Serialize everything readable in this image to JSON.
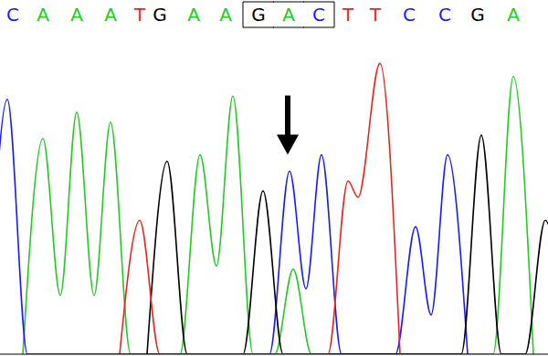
{
  "chart_data": {
    "type": "line",
    "tick_labels": "x",
    "grid": false,
    "xlim": [
      0,
      600
    ],
    "ylim": [
      0,
      100
    ],
    "xticks": [
      {
        "value": 14,
        "label": "C"
      },
      {
        "value": 47,
        "label": "A"
      },
      {
        "value": 84,
        "label": "A"
      },
      {
        "value": 121,
        "label": "A"
      },
      {
        "value": 153,
        "label": "T"
      },
      {
        "value": 175,
        "label": "G"
      },
      {
        "value": 212,
        "label": "A"
      },
      {
        "value": 247,
        "label": "A"
      },
      {
        "value": 283,
        "label": "G"
      },
      {
        "value": 316,
        "label": "A"
      },
      {
        "value": 349,
        "label": "C"
      },
      {
        "value": 381,
        "label": "T"
      },
      {
        "value": 411,
        "label": "T"
      },
      {
        "value": 448,
        "label": "C"
      },
      {
        "value": 487,
        "label": "C"
      },
      {
        "value": 523,
        "label": "G"
      },
      {
        "value": 562,
        "label": "A"
      }
    ],
    "highlight_ticks": [
      8,
      10
    ],
    "arrow": {
      "x": 315,
      "y": 61
    },
    "series": [
      {
        "name": "A",
        "color": "#22cc22",
        "x": [
          25,
          47,
          66,
          84,
          103,
          121,
          143,
          197,
          219,
          237,
          255,
          277,
          301,
          321,
          341,
          540,
          562,
          584
        ],
        "values": [
          0,
          66,
          18,
          74,
          18,
          71,
          0,
          0,
          61,
          27,
          79,
          0,
          0,
          26,
          0,
          0,
          85,
          0
        ]
      },
      {
        "name": "C",
        "color": "#1a1aff",
        "x": [
          -14,
          8,
          30,
          295,
          317,
          335,
          352,
          374,
          433,
          455,
          472,
          490,
          512
        ],
        "values": [
          0,
          78,
          0,
          0,
          56,
          20,
          61,
          0,
          0,
          39,
          12,
          61,
          0
        ]
      },
      {
        "name": "G",
        "color": "#000000",
        "x": [
          161,
          183,
          205,
          266,
          288,
          310,
          505,
          527,
          549,
          575,
          597,
          619
        ],
        "values": [
          0,
          59,
          0,
          0,
          50,
          0,
          0,
          67,
          0,
          0,
          41,
          0
        ]
      },
      {
        "name": "T",
        "color": "#e8261f",
        "x": [
          131,
          153,
          175,
          359,
          381,
          392,
          416,
          438
        ],
        "values": [
          0,
          41,
          0,
          0,
          53,
          48,
          89,
          0
        ]
      }
    ]
  }
}
